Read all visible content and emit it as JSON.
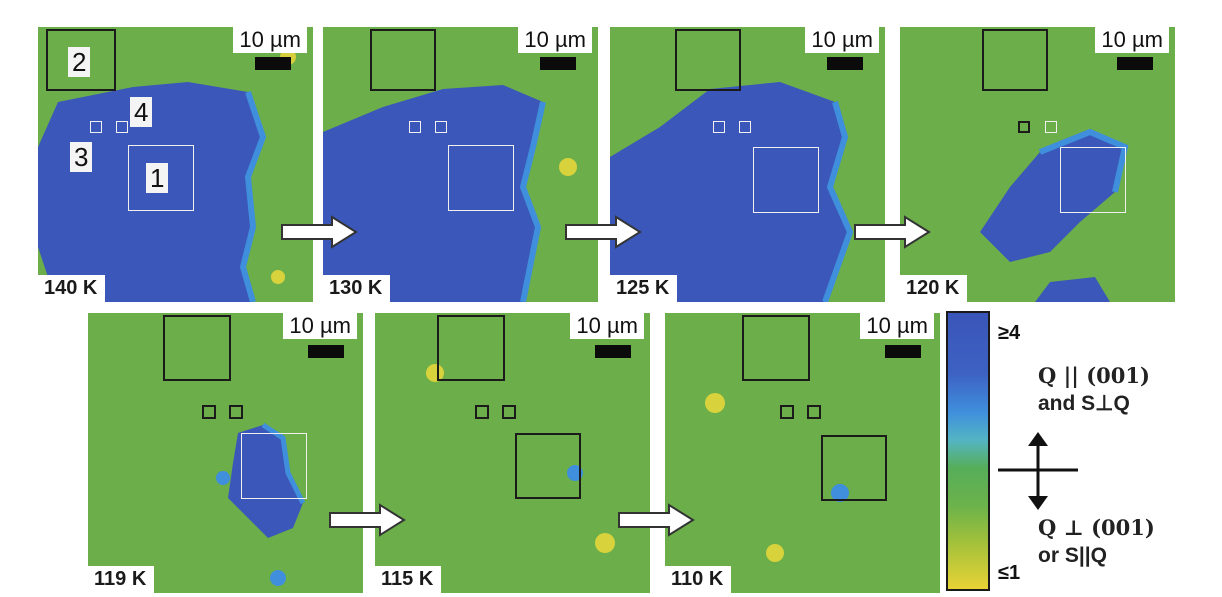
{
  "panels": [
    {
      "temp": "140 K",
      "scale": "10 µm"
    },
    {
      "temp": "130 K",
      "scale": "10 µm"
    },
    {
      "temp": "125 K",
      "scale": "10 µm"
    },
    {
      "temp": "120 K",
      "scale": "10 µm"
    },
    {
      "temp": "119 K",
      "scale": "10 µm"
    },
    {
      "temp": "115 K",
      "scale": "10 µm"
    },
    {
      "temp": "110 K",
      "scale": "10 µm"
    }
  ],
  "region_labels": [
    "1",
    "2",
    "3",
    "4"
  ],
  "colorbar": {
    "max_label": "≥4",
    "min_label": "≤1",
    "colors": [
      "#3a55b8",
      "#3f8fdc",
      "#56ae5a",
      "#a6c23a",
      "#e7d336"
    ]
  },
  "annotations": {
    "upper_line1": "Q || (001)",
    "upper_line2": "and S⊥Q",
    "lower_line1": "Q ⊥ (001)",
    "lower_line2": "or S||Q"
  }
}
